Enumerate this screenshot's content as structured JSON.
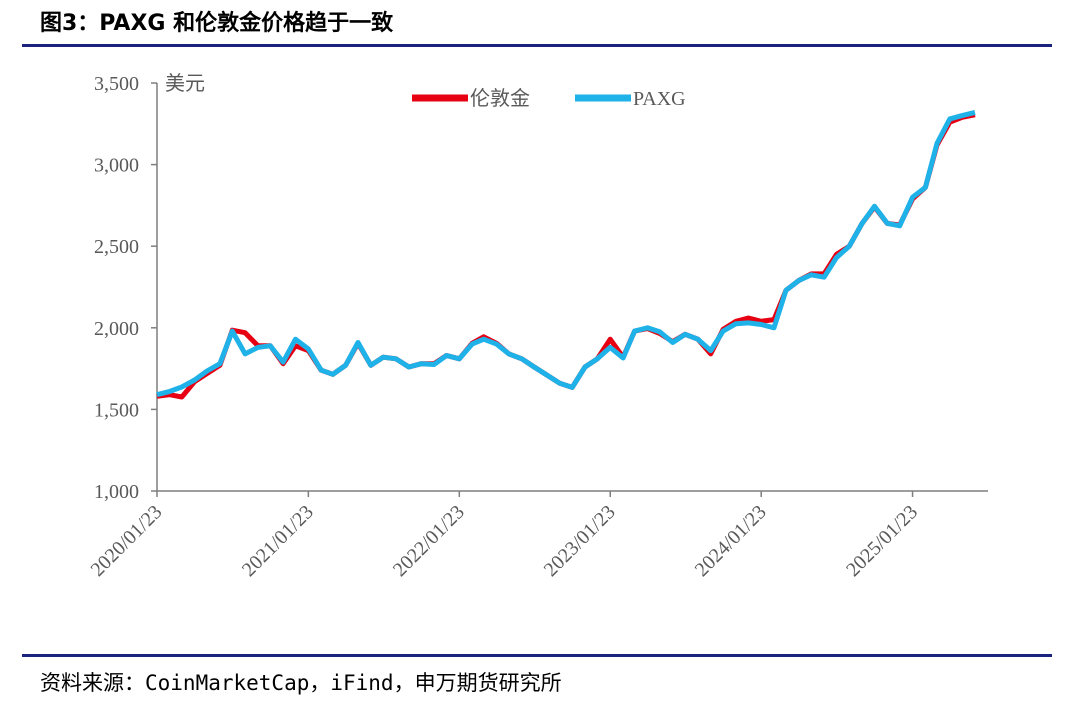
{
  "chart_data": {
    "type": "line",
    "title": "图3：PAXG 和伦敦金价格趋于一致",
    "source": "资料来源：CoinMarketCap，iFind，申万期货研究所",
    "y_label": "美元",
    "x": [
      "2020/01/23",
      "2020/02/23",
      "2020/03/23",
      "2020/04/23",
      "2020/05/23",
      "2020/06/23",
      "2020/07/23",
      "2020/08/23",
      "2020/09/23",
      "2020/10/23",
      "2020/11/23",
      "2020/12/23",
      "2021/01/23",
      "2021/02/23",
      "2021/03/23",
      "2021/04/23",
      "2021/05/23",
      "2021/06/23",
      "2021/07/23",
      "2021/08/23",
      "2021/09/23",
      "2021/10/23",
      "2021/11/23",
      "2021/12/23",
      "2022/01/23",
      "2022/02/23",
      "2022/03/23",
      "2022/04/23",
      "2022/05/23",
      "2022/06/23",
      "2022/07/23",
      "2022/08/23",
      "2022/09/23",
      "2022/10/23",
      "2022/11/23",
      "2022/12/23",
      "2023/01/23",
      "2023/02/23",
      "2023/03/23",
      "2023/04/23",
      "2023/05/23",
      "2023/06/23",
      "2023/07/23",
      "2023/08/23",
      "2023/09/23",
      "2023/10/23",
      "2023/11/23",
      "2023/12/23",
      "2024/01/23",
      "2024/02/23",
      "2024/03/23",
      "2024/04/23",
      "2024/05/23",
      "2024/06/23",
      "2024/07/23",
      "2024/08/23",
      "2024/09/23",
      "2024/10/23",
      "2024/11/23",
      "2024/12/23",
      "2025/01/23",
      "2025/02/23",
      "2025/03/23",
      "2025/04/23",
      "2025/05/23",
      "2025/06/23"
    ],
    "series": [
      {
        "name": "伦敦金",
        "color": "#e60012",
        "values": [
          1580,
          1590,
          1576,
          1670,
          1720,
          1770,
          1985,
          1970,
          1890,
          1890,
          1780,
          1890,
          1860,
          1740,
          1715,
          1770,
          1905,
          1770,
          1820,
          1810,
          1760,
          1780,
          1780,
          1830,
          1810,
          1905,
          1945,
          1905,
          1840,
          1810,
          1760,
          1710,
          1660,
          1635,
          1760,
          1810,
          1930,
          1820,
          1980,
          1995,
          1965,
          1915,
          1960,
          1930,
          1840,
          1990,
          2040,
          2060,
          2040,
          2050,
          2230,
          2290,
          2330,
          2330,
          2450,
          2500,
          2640,
          2740,
          2640,
          2630,
          2790,
          2860,
          3120,
          3260,
          3290,
          3305
        ]
      },
      {
        "name": "PAXG",
        "color": "#1fb2e8",
        "values": [
          1590,
          1610,
          1637,
          1680,
          1735,
          1780,
          1980,
          1840,
          1880,
          1890,
          1790,
          1930,
          1870,
          1740,
          1715,
          1770,
          1910,
          1770,
          1820,
          1810,
          1760,
          1780,
          1775,
          1830,
          1810,
          1900,
          1930,
          1900,
          1840,
          1810,
          1760,
          1710,
          1660,
          1635,
          1760,
          1810,
          1880,
          1815,
          1980,
          2000,
          1975,
          1910,
          1960,
          1930,
          1860,
          1980,
          2025,
          2030,
          2020,
          2000,
          2230,
          2290,
          2325,
          2310,
          2430,
          2500,
          2640,
          2745,
          2640,
          2625,
          2800,
          2860,
          3130,
          3280,
          3300,
          3320
        ]
      }
    ],
    "xlim": [
      "2020/01/23",
      "2025/06/23"
    ],
    "xticks": [
      "2020/01/23",
      "2021/01/23",
      "2022/01/23",
      "2023/01/23",
      "2024/01/23",
      "2025/01/23"
    ],
    "ylim": [
      1000,
      3500
    ],
    "yticks": [
      {
        "value": 1000,
        "label": "1,000"
      },
      {
        "value": 1500,
        "label": "1,500"
      },
      {
        "value": 2000,
        "label": "2,000"
      },
      {
        "value": 2500,
        "label": "2,500"
      },
      {
        "value": 3000,
        "label": "3,000"
      },
      {
        "value": 3500,
        "label": "3,500"
      }
    ],
    "legend": "top"
  }
}
